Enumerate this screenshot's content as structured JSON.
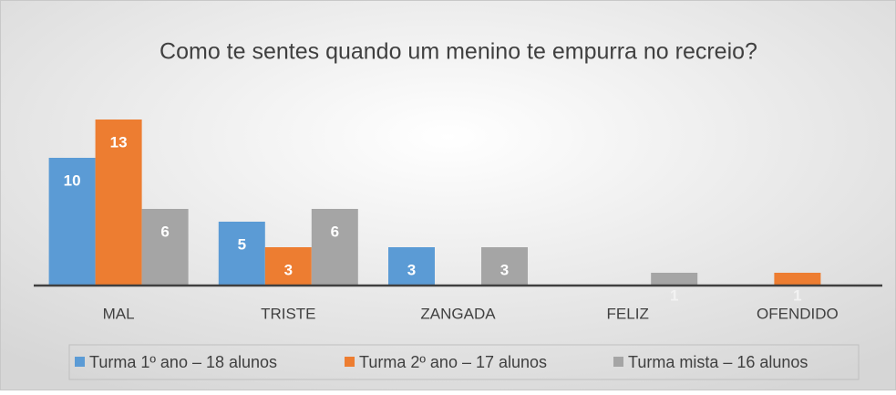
{
  "chart_data": {
    "type": "bar",
    "title": "Como te sentes quando um menino te empurra no recreio?",
    "categories": [
      "MAL",
      "TRISTE",
      "ZANGADA",
      "FELIZ",
      "OFENDIDO"
    ],
    "series": [
      {
        "name": "Turma 1º ano – 18 alunos",
        "color": "#5b9bd5",
        "values": [
          10,
          5,
          3,
          0,
          0
        ]
      },
      {
        "name": "Turma 2º ano – 17 alunos",
        "color": "#ed7d31",
        "values": [
          13,
          3,
          0,
          0,
          1
        ]
      },
      {
        "name": "Turma mista – 16 alunos",
        "color": "#a5a5a5",
        "values": [
          6,
          6,
          3,
          1,
          0
        ]
      }
    ],
    "legend": "bottom"
  }
}
